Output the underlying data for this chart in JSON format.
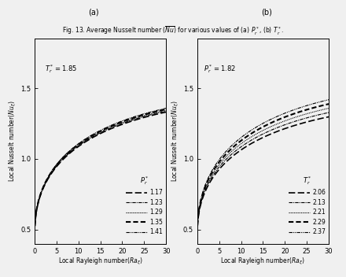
{
  "title_a": "(a)",
  "title_b": "(b)",
  "caption": "Fig. 13. Average Nusselt number ($\\overline{Nu}$) for various values of (a) $P_r^*$, (b) $T_r^*$.",
  "panel_a": {
    "annotation": "$T_r^* = 1.85$",
    "legend_title": "$P_r^*$",
    "legend_values": [
      "1.17",
      "1.23",
      "1.29",
      "1.35",
      "1.41"
    ],
    "xlabel": "Local Rayleigh number$(Ra_\\xi)$",
    "ylabel": "Local Nusselt number$(Nu_\\xi)$",
    "xlim": [
      0,
      30
    ],
    "ylim": [
      0.4,
      1.85
    ],
    "yticks": [
      0.5,
      1.0,
      1.5
    ],
    "xticks": [
      0,
      5,
      10,
      15,
      20,
      25,
      30
    ],
    "scales": [
      0.262,
      0.264,
      0.266,
      0.268,
      0.27
    ]
  },
  "panel_b": {
    "annotation": "$P_r^* = 1.82$",
    "legend_title": "$T_r^*$",
    "legend_values": [
      "2.06",
      "2.13",
      "2.21",
      "2.29",
      "2.37"
    ],
    "xlabel": "Local Rayleigh number$(Ra_\\xi)$",
    "ylabel": "Local Nusselt number$(Nu_\\xi)$",
    "xlim": [
      0,
      30
    ],
    "ylim": [
      0.4,
      1.85
    ],
    "yticks": [
      0.5,
      1.0,
      1.5
    ],
    "xticks": [
      0,
      5,
      10,
      15,
      20,
      25,
      30
    ],
    "scales": [
      0.252,
      0.261,
      0.27,
      0.279,
      0.288
    ]
  },
  "background_color": "#f0f0f0",
  "line_color": "#000000"
}
